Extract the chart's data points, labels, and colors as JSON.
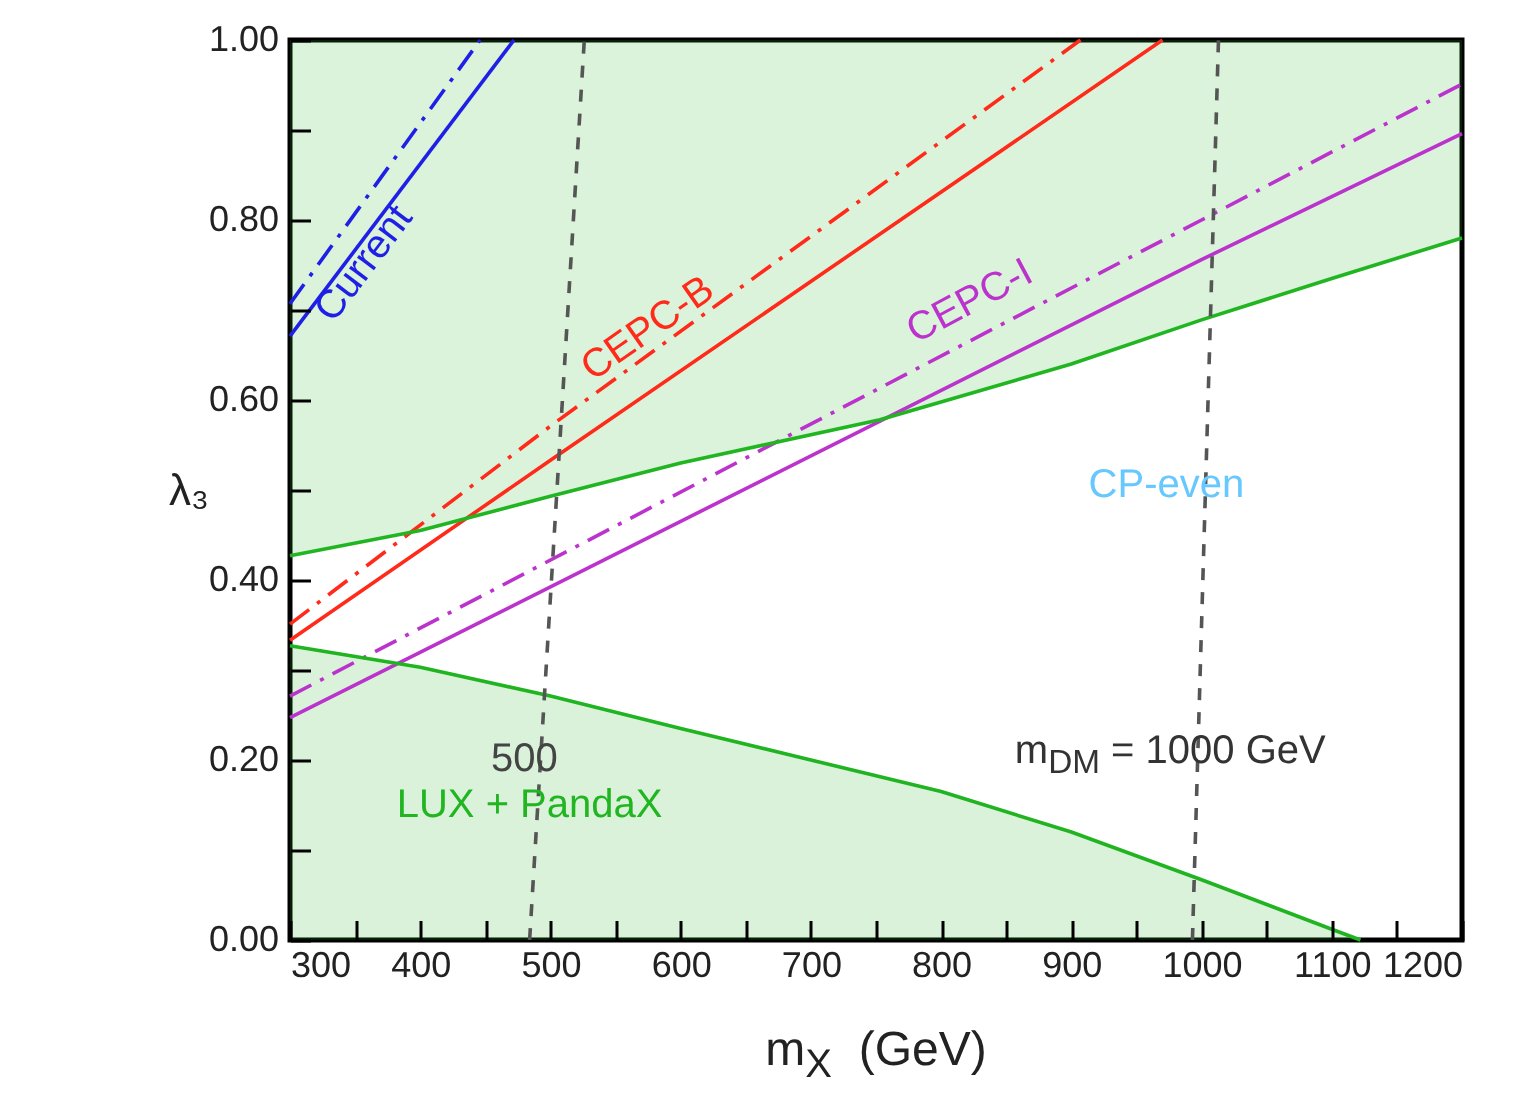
{
  "chart_data": {
    "type": "line",
    "xlabel": "m$_{X}$  (GeV)",
    "ylabel": "λ₃",
    "xlim": [
      300,
      1200
    ],
    "ylim": [
      0,
      1
    ],
    "xticks": [
      300,
      {
        "value": 350,
        "label": null
      },
      400,
      {
        "value": 450,
        "label": null
      },
      500,
      {
        "value": 550,
        "label": null
      },
      600,
      {
        "value": 650,
        "label": null
      },
      700,
      {
        "value": 750,
        "label": null
      },
      800,
      {
        "value": 850,
        "label": null
      },
      900,
      {
        "value": 950,
        "label": null
      },
      1000,
      {
        "value": 1050,
        "label": null
      },
      1100,
      {
        "value": 1150,
        "label": null
      },
      1200
    ],
    "yticks": [
      {
        "value": 0,
        "label": "0.00"
      },
      {
        "value": 0.1,
        "label": null
      },
      {
        "value": 0.2,
        "label": "0.20"
      },
      {
        "value": 0.3,
        "label": null
      },
      {
        "value": 0.4,
        "label": "0.40"
      },
      {
        "value": 0.5,
        "label": null
      },
      {
        "value": 0.6,
        "label": "0.60"
      },
      {
        "value": 0.7,
        "label": null
      },
      {
        "value": 0.8,
        "label": "0.80"
      },
      {
        "value": 0.9,
        "label": null
      },
      {
        "value": 1,
        "label": "1.00"
      }
    ],
    "series": [
      {
        "color": "#1f1fe6",
        "line_style": "solid",
        "name": "Current",
        "x": [
          300,
          472
        ],
        "values": [
          0.671,
          1.0
        ]
      },
      {
        "color": "#1f1fe6",
        "line_style": "dashdot",
        "x": [
          300,
          446
        ],
        "values": [
          0.707,
          1.0
        ]
      },
      {
        "color": "#ff2a1a",
        "line_style": "solid",
        "name": "CEPC-B",
        "x": [
          300,
          500,
          970
        ],
        "values": [
          0.333,
          0.533,
          1.0
        ]
      },
      {
        "color": "#ff2a1a",
        "line_style": "dashdot",
        "x": [
          300,
          500,
          907
        ],
        "values": [
          0.351,
          0.571,
          1.0
        ]
      },
      {
        "color": "#bb33cc",
        "line_style": "solid",
        "name": "CEPC-I",
        "x": [
          300,
          1000,
          1200
        ],
        "values": [
          0.247,
          0.756,
          0.896
        ]
      },
      {
        "color": "#bb33cc",
        "line_style": "dashdot",
        "x": [
          300,
          1000,
          1200
        ],
        "values": [
          0.271,
          0.8,
          0.951
        ]
      },
      {
        "color": "#22b522",
        "line_style": "solid",
        "x": [
          300,
          400,
          500,
          600,
          753,
          900,
          1000,
          1100,
          1200
        ],
        "values": [
          0.427,
          0.455,
          0.493,
          0.53,
          0.578,
          0.64,
          0.689,
          0.735,
          0.78
        ],
        "lower": [
          0.427,
          0.455,
          0.493,
          0.53,
          0.578,
          0.64,
          0.689,
          0.735,
          0.78
        ],
        "upper": [
          1,
          1,
          1,
          1,
          1,
          1,
          1,
          1,
          1
        ]
      },
      {
        "color": "#21b421",
        "line_style": "solid",
        "x": [
          300,
          400,
          500,
          600,
          700,
          800,
          900,
          1000,
          1100,
          1122
        ],
        "values": [
          0.327,
          0.303,
          0.271,
          0.235,
          0.2,
          0.165,
          0.12,
          0.067,
          0.012,
          0
        ],
        "lower": [
          0,
          0,
          0,
          0,
          0,
          0,
          0,
          0,
          0,
          0
        ],
        "upper": [
          0.327,
          0.303,
          0.271,
          0.235,
          0.2,
          0.165,
          0.12,
          0.067,
          0.012,
          0
        ]
      },
      {
        "color": "#555555",
        "line_style": "dashed",
        "x": [
          484,
          526
        ],
        "values": [
          0,
          1
        ]
      },
      {
        "color": "#555555",
        "line_style": "dashed",
        "x": [
          993,
          1013
        ],
        "values": [
          0,
          1
        ]
      }
    ],
    "annotations": [
      "CP-even",
      "500",
      "m$_{DM}$ = 1000 GeV",
      "LUX + PandaX"
    ]
  }
}
